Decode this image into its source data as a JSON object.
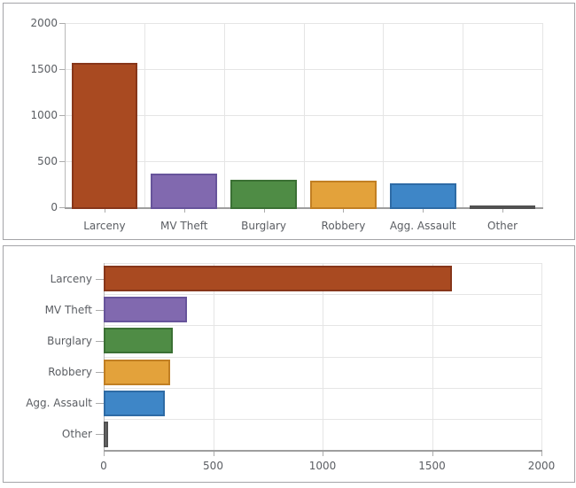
{
  "style": {
    "background": "#ffffff",
    "panel_border": "#a4a4a8",
    "grid_color": "#e5e5e5",
    "axis_line_light": "#b9b9b9",
    "axis_line_dark": "#9e9e9e",
    "tick_color": "#acacac",
    "label_color": "#5b5e63"
  },
  "chart_data": [
    {
      "type": "bar",
      "orientation": "vertical",
      "categories": [
        "Larceny",
        "MV Theft",
        "Burglary",
        "Robbery",
        "Agg. Assault",
        "Other"
      ],
      "values": [
        1590,
        380,
        315,
        305,
        280,
        20
      ],
      "value_axis": {
        "min": 0,
        "max": 2000,
        "ticks": [
          0,
          500,
          1000,
          1500,
          2000
        ],
        "tick_labels": [
          "0",
          "500",
          "1000",
          "1500",
          "2000"
        ]
      },
      "grid": true,
      "legend": false,
      "bar_fill_colors": [
        "#a94a21",
        "#8169af",
        "#4f8c45",
        "#e3a23b",
        "#3e86c7",
        "#6f6f6f"
      ],
      "bar_stroke_colors": [
        "#87361a",
        "#67549b",
        "#3b7034",
        "#c17f23",
        "#2e6ba5",
        "#515151"
      ]
    },
    {
      "type": "bar",
      "orientation": "horizontal",
      "categories": [
        "Larceny",
        "MV Theft",
        "Burglary",
        "Robbery",
        "Agg. Assault",
        "Other"
      ],
      "values": [
        1590,
        380,
        315,
        305,
        280,
        20
      ],
      "value_axis": {
        "min": 0,
        "max": 2000,
        "ticks": [
          0,
          500,
          1000,
          1500,
          2000
        ],
        "tick_labels": [
          "0",
          "500",
          "1000",
          "1500",
          "2000"
        ]
      },
      "grid": true,
      "legend": false,
      "bar_fill_colors": [
        "#a94a21",
        "#8169af",
        "#4f8c45",
        "#e3a23b",
        "#3e86c7",
        "#6f6f6f"
      ],
      "bar_stroke_colors": [
        "#87361a",
        "#67549b",
        "#3b7034",
        "#c17f23",
        "#2e6ba5",
        "#515151"
      ]
    }
  ]
}
